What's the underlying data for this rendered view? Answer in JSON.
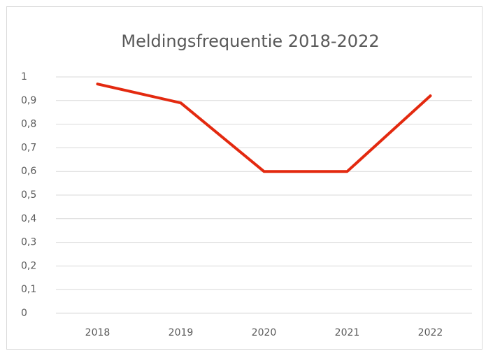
{
  "chart_data": {
    "type": "line",
    "title": "Meldingsfrequentie 2018-2022",
    "categories": [
      "2018",
      "2019",
      "2020",
      "2021",
      "2022"
    ],
    "series": [
      {
        "name": "Meldingsfrequentie",
        "color": "#e3290f",
        "values": [
          0.97,
          0.89,
          0.6,
          0.6,
          0.92
        ]
      }
    ],
    "ylim": [
      0,
      1
    ],
    "yticks": [
      0,
      {
        "value": 0.1,
        "label": "0,1"
      },
      {
        "value": 0.2,
        "label": "0,2"
      },
      {
        "value": 0.3,
        "label": "0,3"
      },
      {
        "value": 0.4,
        "label": "0,4"
      },
      {
        "value": 0.5,
        "label": "0,5"
      },
      {
        "value": 0.6,
        "label": "0,6"
      },
      {
        "value": 0.7,
        "label": "0,7"
      },
      {
        "value": 0.8,
        "label": "0,8"
      },
      {
        "value": 0.9,
        "label": "0,9"
      },
      1
    ],
    "grid": true,
    "legend": false
  }
}
